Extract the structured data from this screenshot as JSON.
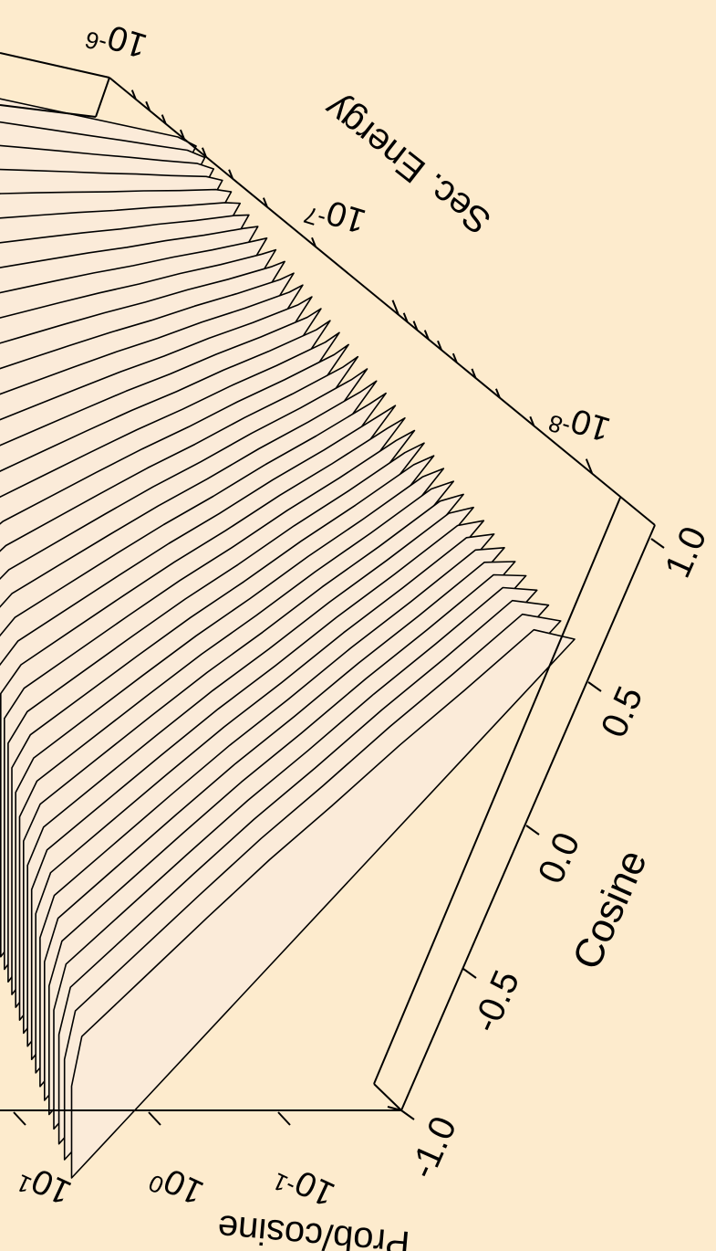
{
  "chart_data": {
    "type": "surface3d",
    "title": "",
    "axes": {
      "energy": {
        "label": "Sec. Energy",
        "ticks": [
          {
            "mantissa": "10",
            "exp": "-8"
          },
          {
            "mantissa": "10",
            "exp": "-7"
          },
          {
            "mantissa": "10",
            "exp": "-6"
          }
        ]
      },
      "cosine": {
        "label": "Cosine",
        "ticks": [
          "-1.0",
          "-0.5",
          "0.0",
          "0.5",
          "1.0"
        ],
        "range": [
          -1.0,
          1.0
        ]
      },
      "prob": {
        "label": "Prob/cosine",
        "ticks": [
          {
            "mantissa": "10",
            "exp": "-1"
          },
          {
            "mantissa": "10",
            "exp": "0"
          },
          {
            "mantissa": "10",
            "exp": "1"
          }
        ],
        "scale": "log"
      }
    },
    "series_count": 40,
    "colors": {
      "background": "#fdebcd",
      "surface": "#fbebd9",
      "line": "#000000"
    }
  }
}
